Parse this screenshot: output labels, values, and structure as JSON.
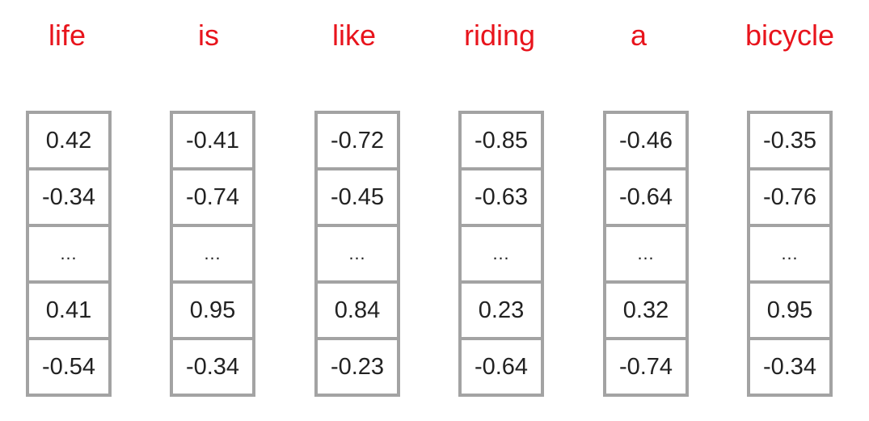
{
  "colors": {
    "word": "#e8141c",
    "cell_border": "#a3a3a3",
    "cell_text": "#222222",
    "background": "#ffffff"
  },
  "tokens": [
    {
      "word": "life",
      "values": [
        "0.42",
        "-0.34",
        "…",
        "0.41",
        "-0.54"
      ]
    },
    {
      "word": "is",
      "values": [
        "-0.41",
        "-0.74",
        "…",
        "0.95",
        "-0.34"
      ]
    },
    {
      "word": "like",
      "values": [
        "-0.72",
        "-0.45",
        "…",
        "0.84",
        "-0.23"
      ]
    },
    {
      "word": "riding",
      "values": [
        "-0.85",
        "-0.63",
        "…",
        "0.23",
        "-0.64"
      ]
    },
    {
      "word": "a",
      "values": [
        "-0.46",
        "-0.64",
        "…",
        "0.32",
        "-0.74"
      ]
    },
    {
      "word": "bicycle",
      "values": [
        "-0.35",
        "-0.76",
        "…",
        "0.95",
        "-0.34"
      ]
    }
  ]
}
